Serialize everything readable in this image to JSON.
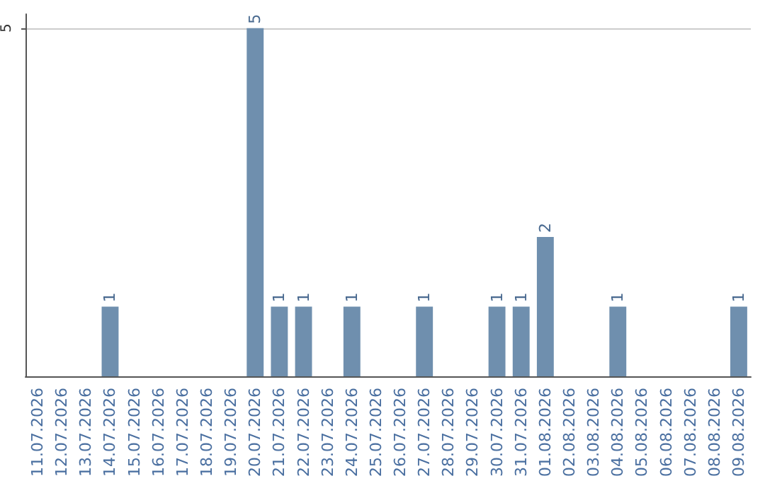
{
  "chart_data": {
    "type": "bar",
    "categories": [
      "11.07.2026",
      "12.07.2026",
      "13.07.2026",
      "14.07.2026",
      "15.07.2026",
      "16.07.2026",
      "17.07.2026",
      "18.07.2026",
      "19.07.2026",
      "20.07.2026",
      "21.07.2026",
      "22.07.2026",
      "23.07.2026",
      "24.07.2026",
      "25.07.2026",
      "26.07.2026",
      "27.07.2026",
      "28.07.2026",
      "29.07.2026",
      "30.07.2026",
      "31.07.2026",
      "01.08.2026",
      "02.08.2026",
      "03.08.2026",
      "04.08.2026",
      "05.08.2026",
      "06.08.2026",
      "07.08.2026",
      "08.08.2026",
      "09.08.2026"
    ],
    "values": [
      0,
      0,
      0,
      1,
      0,
      0,
      0,
      0,
      0,
      5,
      1,
      1,
      0,
      1,
      0,
      0,
      1,
      0,
      0,
      1,
      1,
      2,
      0,
      0,
      1,
      0,
      0,
      0,
      0,
      1
    ],
    "value_labels": [
      null,
      null,
      null,
      "1",
      null,
      null,
      null,
      null,
      null,
      "5",
      "1",
      "1",
      null,
      "1",
      null,
      null,
      "1",
      null,
      null,
      "1",
      "1",
      "2",
      null,
      null,
      "1",
      null,
      null,
      null,
      null,
      "1"
    ],
    "color": "#6f8fae",
    "ylim": [
      0,
      5.2
    ],
    "yticks": [
      5
    ],
    "grid": "y"
  }
}
